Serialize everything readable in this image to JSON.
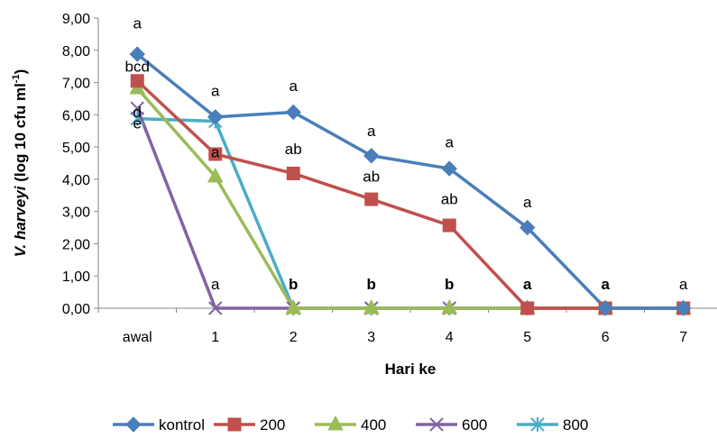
{
  "chart_data": {
    "type": "line",
    "title": "",
    "xlabel": "Hari ke",
    "ylabel_prefix": "V. harveyi",
    "ylabel_main": " (log 10 cfu ml",
    "ylabel_sup": "-1",
    "ylabel_suffix": ")",
    "categories": [
      "awal",
      "1",
      "2",
      "3",
      "4",
      "5",
      "6",
      "7"
    ],
    "ylim": [
      0,
      9
    ],
    "y_ticks": [
      "0,00",
      "1,00",
      "2,00",
      "3,00",
      "4,00",
      "5,00",
      "6,00",
      "7,00",
      "8,00",
      "9,00"
    ],
    "grid": false,
    "legend_position": "bottom",
    "series": [
      {
        "name": "kontrol",
        "color": "#4a7ebb",
        "marker": "diamond",
        "values": [
          7.88,
          5.93,
          6.08,
          4.73,
          4.33,
          2.5,
          0.0,
          0.0
        ]
      },
      {
        "name": "200",
        "color": "#c0504d",
        "marker": "square",
        "values": [
          7.05,
          4.78,
          4.18,
          3.38,
          2.57,
          0.0,
          0.0,
          0.0
        ]
      },
      {
        "name": "400",
        "color": "#9bbb59",
        "marker": "triangle",
        "values": [
          6.82,
          4.08,
          0.0,
          0.0,
          0.0,
          0.0,
          0.0,
          0.0
        ]
      },
      {
        "name": "600",
        "color": "#8064a2",
        "marker": "x",
        "values": [
          6.2,
          0.0,
          0.0,
          0.0,
          0.0,
          0.0,
          0.0,
          0.0
        ]
      },
      {
        "name": "800",
        "color": "#4bacc6",
        "marker": "star",
        "values": [
          5.88,
          5.8,
          0.0,
          0.0,
          0.0,
          0.0,
          0.0,
          0.0
        ]
      }
    ],
    "annotations": [
      {
        "cat": 0,
        "y": 8.85,
        "text": "a",
        "bold": false
      },
      {
        "cat": 0,
        "y": 7.5,
        "text": "bcd",
        "bold": false
      },
      {
        "cat": 0,
        "y": 6.1,
        "text": "d",
        "bold": false
      },
      {
        "cat": 0,
        "y": 5.75,
        "text": "e",
        "bold": false
      },
      {
        "cat": 1,
        "y": 6.75,
        "text": "a",
        "bold": false
      },
      {
        "cat": 1,
        "y": 4.85,
        "text": "a",
        "bold": false
      },
      {
        "cat": 1,
        "y": 0.75,
        "text": "a",
        "bold": false
      },
      {
        "cat": 2,
        "y": 6.9,
        "text": "a",
        "bold": false
      },
      {
        "cat": 2,
        "y": 4.95,
        "text": "ab",
        "bold": false
      },
      {
        "cat": 2,
        "y": 0.75,
        "text": "b",
        "bold": true
      },
      {
        "cat": 3,
        "y": 5.5,
        "text": "a",
        "bold": false
      },
      {
        "cat": 3,
        "y": 4.1,
        "text": "ab",
        "bold": false
      },
      {
        "cat": 3,
        "y": 0.75,
        "text": "b",
        "bold": true
      },
      {
        "cat": 4,
        "y": 5.15,
        "text": "a",
        "bold": false
      },
      {
        "cat": 4,
        "y": 3.4,
        "text": "ab",
        "bold": false
      },
      {
        "cat": 4,
        "y": 0.75,
        "text": "b",
        "bold": true
      },
      {
        "cat": 5,
        "y": 3.3,
        "text": "a",
        "bold": false
      },
      {
        "cat": 5,
        "y": 0.75,
        "text": "a",
        "bold": true
      },
      {
        "cat": 6,
        "y": 0.75,
        "text": "a",
        "bold": true
      },
      {
        "cat": 7,
        "y": 0.75,
        "text": "a",
        "bold": false
      }
    ]
  }
}
